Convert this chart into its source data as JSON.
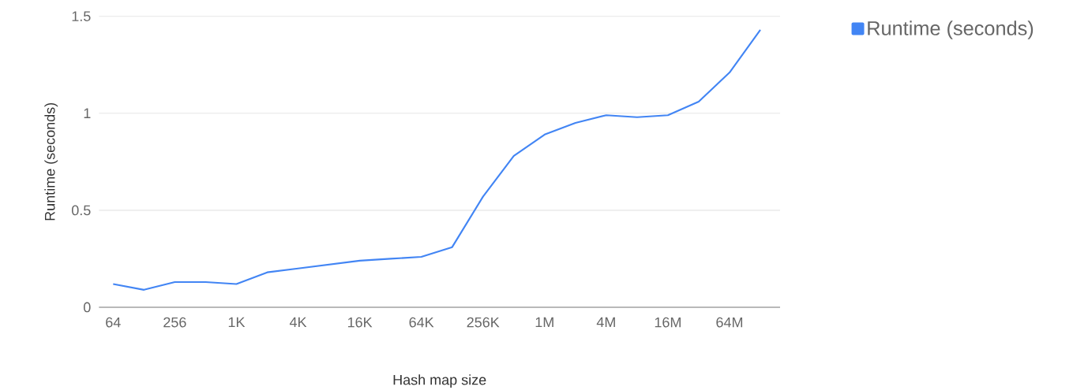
{
  "chart_data": {
    "type": "line",
    "xlabel": "Hash map size",
    "ylabel": "Runtime (seconds)",
    "categories": [
      "64",
      null,
      "256",
      null,
      "1K",
      null,
      "4K",
      null,
      "16K",
      null,
      "64K",
      null,
      "256K",
      null,
      "1M",
      null,
      "4M",
      null,
      "16M",
      null,
      "64M",
      null
    ],
    "series": [
      {
        "name": "Runtime (seconds)",
        "color": "#4285f4",
        "values": [
          0.12,
          0.09,
          0.13,
          0.13,
          0.12,
          0.18,
          0.2,
          0.22,
          0.24,
          0.25,
          0.26,
          0.31,
          0.57,
          0.78,
          0.89,
          0.95,
          0.99,
          0.98,
          0.99,
          1.06,
          1.21,
          1.43
        ]
      }
    ],
    "ylim": [
      0,
      1.5
    ],
    "yticks": [
      0,
      0.5,
      1,
      1.5
    ],
    "grid": "y",
    "legend": "top right",
    "marker": "none",
    "line_style": "solid"
  }
}
